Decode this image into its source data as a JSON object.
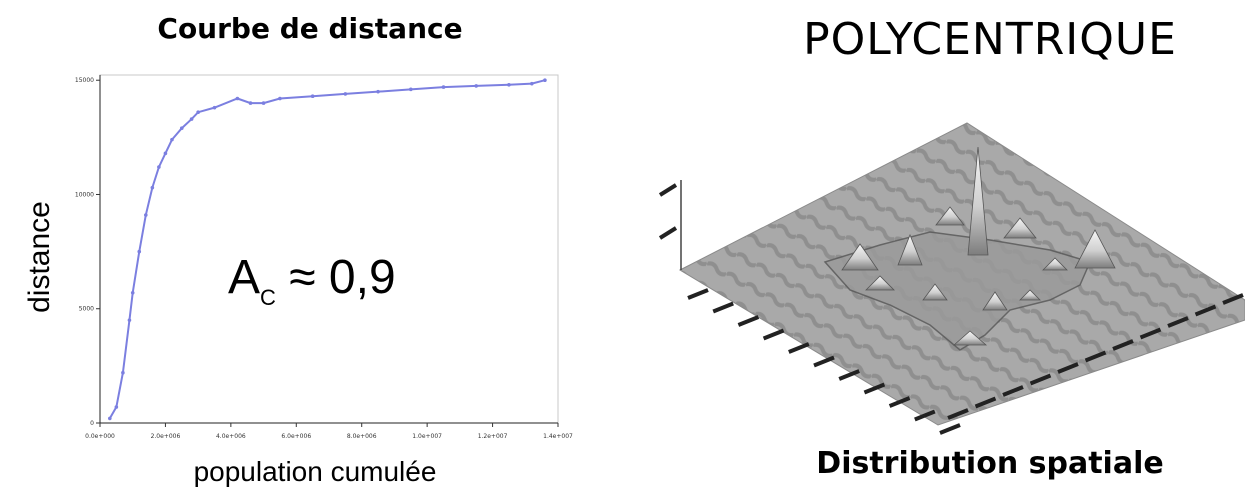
{
  "chart_data": {
    "type": "line",
    "title": "Courbe de distance",
    "xlabel": "population cumulée",
    "ylabel": "distance",
    "xlim": [
      0,
      14000000
    ],
    "ylim": [
      0,
      15000
    ],
    "x_ticks": [
      "0.0e+000",
      "2.0e+006",
      "4.0e+006",
      "6.0e+006",
      "8.0e+006",
      "1.0e+007",
      "1.2e+007",
      "1.4e+007"
    ],
    "y_ticks": [
      "0",
      "5000",
      "10000",
      "15000"
    ],
    "series": [
      {
        "color": "#7b7fe0",
        "points": [
          [
            300000,
            200
          ],
          [
            500000,
            700
          ],
          [
            700000,
            2200
          ],
          [
            900000,
            4500
          ],
          [
            1000000,
            5700
          ],
          [
            1200000,
            7500
          ],
          [
            1400000,
            9100
          ],
          [
            1600000,
            10300
          ],
          [
            1800000,
            11200
          ],
          [
            2000000,
            11800
          ],
          [
            2200000,
            12400
          ],
          [
            2500000,
            12900
          ],
          [
            2800000,
            13300
          ],
          [
            3000000,
            13600
          ],
          [
            3500000,
            13800
          ],
          [
            4200000,
            14200
          ],
          [
            4600000,
            14000
          ],
          [
            5000000,
            14000
          ],
          [
            5500000,
            14200
          ],
          [
            6500000,
            14300
          ],
          [
            7500000,
            14400
          ],
          [
            8500000,
            14500
          ],
          [
            9500000,
            14600
          ],
          [
            10500000,
            14700
          ],
          [
            11500000,
            14750
          ],
          [
            12500000,
            14800
          ],
          [
            13200000,
            14850
          ],
          [
            13600000,
            15000
          ]
        ]
      }
    ],
    "annotation": {
      "main": "A",
      "sub": "C",
      "rest": " ≈ 0,9"
    },
    "grid": false,
    "legend": "none"
  },
  "right_panel": {
    "title": "POLYCENTRIQUE",
    "caption": "Distribution spatiale"
  }
}
